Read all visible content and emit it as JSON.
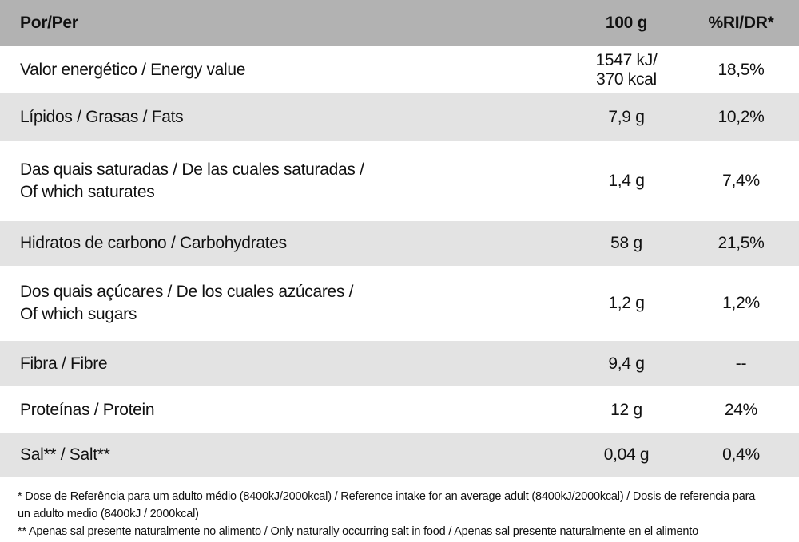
{
  "table": {
    "header": {
      "per": "Por/Per",
      "amount": "100 g",
      "ri": "%RI/DR*"
    },
    "rows": [
      {
        "label": "Valor energético / Energy value",
        "amount": "1547 kJ/\n370 kcal",
        "ri": "18,5%"
      },
      {
        "label": "Lípidos / Grasas / Fats",
        "amount": "7,9 g",
        "ri": "10,2%"
      },
      {
        "label": "Das quais saturadas / De las cuales saturadas /\nOf which saturates",
        "amount": "1,4 g",
        "ri": "7,4%"
      },
      {
        "label": "Hidratos de carbono / Carbohydrates",
        "amount": "58 g",
        "ri": "21,5%"
      },
      {
        "label": "Dos quais açúcares / De los cuales azúcares /\nOf which sugars",
        "amount": "1,2 g",
        "ri": "1,2%"
      },
      {
        "label": "Fibra / Fibre",
        "amount": "9,4 g",
        "ri": "--"
      },
      {
        "label": "Proteínas / Protein",
        "amount": "12 g",
        "ri": "24%"
      },
      {
        "label": "Sal** / Salt**",
        "amount": "0,04 g",
        "ri": "0,4%"
      }
    ]
  },
  "footnotes": [
    "* Dose de Referência para um adulto médio (8400kJ/2000kcal) / Reference intake for an average adult (8400kJ/2000kcal) / Dosis de referencia para\nun adulto medio (8400kJ / 2000kcal)",
    "** Apenas sal presente naturalmente no alimento / Only naturally occurring salt in food / Apenas sal presente naturalmente en el alimento"
  ],
  "colors": {
    "header_bg": "#b2b2b2",
    "row_alt_bg": "#e3e3e3",
    "row_bg": "#ffffff",
    "text": "#111111"
  }
}
